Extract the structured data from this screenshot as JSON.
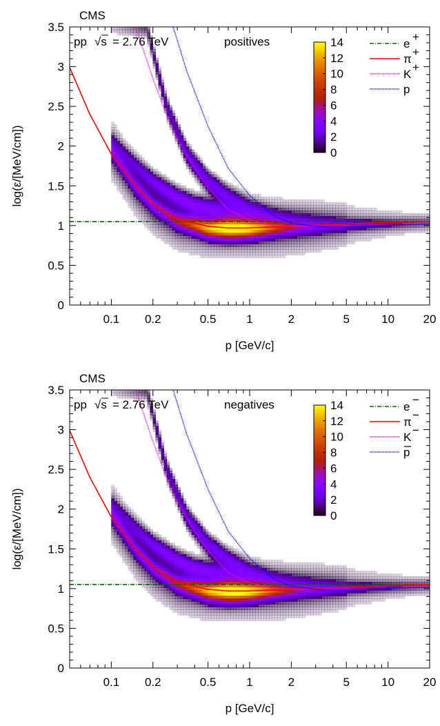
{
  "chart_data": [
    {
      "type": "heatmap",
      "panel": "top",
      "experiment": "CMS",
      "system": "pp",
      "sqrt_s_label": "√s",
      "energy_text": "= 2.76 TeV",
      "charge_label": "positives",
      "xlabel": "p [GeV/c]",
      "ylabel": "log(ε/[MeV/cm])",
      "x_scale": "log",
      "xlim": [
        0.05,
        20
      ],
      "ylim": [
        0,
        3.5
      ],
      "x_ticks": [
        0.1,
        0.2,
        0.5,
        1,
        2,
        5,
        10,
        20
      ],
      "x_tick_labels": [
        "0.1",
        "0.2",
        "0.5",
        "1",
        "2",
        "5",
        "10",
        "20"
      ],
      "y_ticks": [
        0,
        0.5,
        1,
        1.5,
        2,
        2.5,
        3,
        3.5
      ],
      "y_tick_labels": [
        "0",
        "0.5",
        "1",
        "1.5",
        "2",
        "2.5",
        "3",
        "3.5"
      ],
      "colorbar": {
        "range": [
          0,
          14
        ],
        "ticks": [
          0,
          2,
          4,
          6,
          8,
          10,
          12,
          14
        ],
        "tick_labels": [
          "0",
          "2",
          "4",
          "6",
          "8",
          "10",
          "12",
          "14"
        ]
      },
      "legend_position": "top-right",
      "series": [
        {
          "name": "e",
          "sup": "+",
          "overline": false,
          "color": "#006400",
          "dash": "6,2,1,2",
          "points": [
            [
              0.05,
              1.05
            ],
            [
              0.2,
              1.05
            ],
            [
              1,
              1.05
            ],
            [
              5,
              1.05
            ],
            [
              20,
              1.05
            ]
          ]
        },
        {
          "name": "π",
          "sup": "+",
          "overline": false,
          "color": "#ff0000",
          "dash": "",
          "points": [
            [
              0.05,
              2.99
            ],
            [
              0.07,
              2.4
            ],
            [
              0.1,
              1.9
            ],
            [
              0.15,
              1.5
            ],
            [
              0.2,
              1.28
            ],
            [
              0.3,
              1.08
            ],
            [
              0.5,
              0.99
            ],
            [
              0.7,
              0.97
            ],
            [
              1,
              0.97
            ],
            [
              2,
              0.99
            ],
            [
              5,
              1.02
            ],
            [
              10,
              1.04
            ],
            [
              20,
              1.05
            ]
          ]
        },
        {
          "name": "K",
          "sup": "+",
          "overline": false,
          "color": "#ff00ff",
          "dash": "1,1",
          "points": [
            [
              0.15,
              3.5
            ],
            [
              0.2,
              2.85
            ],
            [
              0.25,
              2.4
            ],
            [
              0.3,
              2.1
            ],
            [
              0.4,
              1.72
            ],
            [
              0.5,
              1.48
            ],
            [
              0.7,
              1.2
            ],
            [
              1,
              1.07
            ],
            [
              1.5,
              1.0
            ],
            [
              2,
              0.99
            ],
            [
              5,
              1.0
            ],
            [
              10,
              1.02
            ],
            [
              20,
              1.03
            ]
          ]
        },
        {
          "name": "p",
          "sup": "",
          "overline": false,
          "color": "#0000ff",
          "dash": "1,1",
          "points": [
            [
              0.28,
              3.5
            ],
            [
              0.35,
              2.95
            ],
            [
              0.5,
              2.25
            ],
            [
              0.7,
              1.72
            ],
            [
              1,
              1.38
            ],
            [
              1.5,
              1.12
            ],
            [
              2,
              1.03
            ],
            [
              3,
              0.99
            ],
            [
              5,
              0.98
            ],
            [
              10,
              1.0
            ],
            [
              20,
              1.02
            ]
          ]
        }
      ],
      "bands": [
        {
          "label": "π",
          "points": [
            [
              0.1,
              1.95
            ],
            [
              0.15,
              1.5
            ],
            [
              0.2,
              1.26
            ],
            [
              0.3,
              1.06
            ],
            [
              0.5,
              0.97
            ],
            [
              1,
              0.96
            ],
            [
              2,
              0.98
            ],
            [
              5,
              1.01
            ],
            [
              20,
              1.04
            ]
          ]
        },
        {
          "label": "K",
          "points": [
            [
              0.1,
              2.05
            ],
            [
              0.15,
              1.75
            ],
            [
              0.2,
              1.55
            ],
            [
              0.3,
              1.35
            ],
            [
              0.4,
              1.25
            ],
            [
              0.6,
              1.2
            ],
            [
              1,
              1.08
            ],
            [
              2,
              1.02
            ],
            [
              5,
              1.01
            ],
            [
              20,
              1.03
            ]
          ]
        },
        {
          "label": "p",
          "points": [
            [
              0.18,
              3.5
            ],
            [
              0.25,
              2.5
            ],
            [
              0.35,
              1.9
            ],
            [
              0.5,
              1.55
            ],
            [
              0.7,
              1.35
            ],
            [
              1,
              1.2
            ],
            [
              1.5,
              1.1
            ],
            [
              2,
              1.07
            ],
            [
              5,
              1.06
            ],
            [
              20,
              1.06
            ]
          ]
        }
      ]
    },
    {
      "type": "heatmap",
      "panel": "bottom",
      "experiment": "CMS",
      "system": "pp",
      "sqrt_s_label": "√s",
      "energy_text": "= 2.76 TeV",
      "charge_label": "negatives",
      "xlabel": "p [GeV/c]",
      "ylabel": "log(ε/[MeV/cm])",
      "x_scale": "log",
      "xlim": [
        0.05,
        20
      ],
      "ylim": [
        0,
        3.5
      ],
      "x_ticks": [
        0.1,
        0.2,
        0.5,
        1,
        2,
        5,
        10,
        20
      ],
      "x_tick_labels": [
        "0.1",
        "0.2",
        "0.5",
        "1",
        "2",
        "5",
        "10",
        "20"
      ],
      "y_ticks": [
        0,
        0.5,
        1,
        1.5,
        2,
        2.5,
        3,
        3.5
      ],
      "y_tick_labels": [
        "0",
        "0.5",
        "1",
        "1.5",
        "2",
        "2.5",
        "3",
        "3.5"
      ],
      "colorbar": {
        "range": [
          0,
          14
        ],
        "ticks": [
          0,
          2,
          4,
          6,
          8,
          10,
          12,
          14
        ],
        "tick_labels": [
          "0",
          "2",
          "4",
          "6",
          "8",
          "10",
          "12",
          "14"
        ]
      },
      "legend_position": "top-right",
      "series": [
        {
          "name": "e",
          "sup": "−",
          "overline": false,
          "color": "#006400",
          "dash": "6,2,1,2",
          "points": [
            [
              0.05,
              1.05
            ],
            [
              0.2,
              1.05
            ],
            [
              1,
              1.05
            ],
            [
              5,
              1.05
            ],
            [
              20,
              1.05
            ]
          ]
        },
        {
          "name": "π",
          "sup": "−",
          "overline": false,
          "color": "#ff0000",
          "dash": "",
          "points": [
            [
              0.05,
              2.99
            ],
            [
              0.07,
              2.4
            ],
            [
              0.1,
              1.9
            ],
            [
              0.15,
              1.5
            ],
            [
              0.2,
              1.28
            ],
            [
              0.3,
              1.08
            ],
            [
              0.5,
              0.99
            ],
            [
              0.7,
              0.97
            ],
            [
              1,
              0.97
            ],
            [
              2,
              0.99
            ],
            [
              5,
              1.02
            ],
            [
              10,
              1.04
            ],
            [
              20,
              1.05
            ]
          ]
        },
        {
          "name": "K",
          "sup": "−",
          "overline": false,
          "color": "#ff00ff",
          "dash": "1,1",
          "points": [
            [
              0.15,
              3.5
            ],
            [
              0.2,
              2.85
            ],
            [
              0.25,
              2.4
            ],
            [
              0.3,
              2.1
            ],
            [
              0.4,
              1.72
            ],
            [
              0.5,
              1.48
            ],
            [
              0.7,
              1.2
            ],
            [
              1,
              1.07
            ],
            [
              1.5,
              1.0
            ],
            [
              2,
              0.99
            ],
            [
              5,
              1.0
            ],
            [
              10,
              1.02
            ],
            [
              20,
              1.03
            ]
          ]
        },
        {
          "name": "p",
          "sup": "",
          "overline": true,
          "color": "#0000ff",
          "dash": "1,1",
          "points": [
            [
              0.28,
              3.5
            ],
            [
              0.35,
              2.95
            ],
            [
              0.5,
              2.25
            ],
            [
              0.7,
              1.72
            ],
            [
              1,
              1.38
            ],
            [
              1.5,
              1.12
            ],
            [
              2,
              1.03
            ],
            [
              3,
              0.99
            ],
            [
              5,
              0.98
            ],
            [
              10,
              1.0
            ],
            [
              20,
              1.02
            ]
          ]
        }
      ],
      "bands": [
        {
          "label": "π",
          "points": [
            [
              0.1,
              1.95
            ],
            [
              0.15,
              1.5
            ],
            [
              0.2,
              1.26
            ],
            [
              0.3,
              1.06
            ],
            [
              0.5,
              0.97
            ],
            [
              1,
              0.96
            ],
            [
              2,
              0.98
            ],
            [
              5,
              1.01
            ],
            [
              20,
              1.04
            ]
          ]
        },
        {
          "label": "K",
          "points": [
            [
              0.1,
              2.05
            ],
            [
              0.15,
              1.75
            ],
            [
              0.2,
              1.55
            ],
            [
              0.3,
              1.35
            ],
            [
              0.4,
              1.25
            ],
            [
              0.6,
              1.2
            ],
            [
              1,
              1.08
            ],
            [
              2,
              1.02
            ],
            [
              5,
              1.01
            ],
            [
              20,
              1.03
            ]
          ]
        },
        {
          "label": "p",
          "points": [
            [
              0.18,
              3.5
            ],
            [
              0.25,
              2.5
            ],
            [
              0.35,
              1.9
            ],
            [
              0.5,
              1.55
            ],
            [
              0.7,
              1.35
            ],
            [
              1,
              1.2
            ],
            [
              1.5,
              1.1
            ],
            [
              2,
              1.07
            ],
            [
              5,
              1.06
            ],
            [
              20,
              1.06
            ]
          ]
        }
      ]
    }
  ]
}
